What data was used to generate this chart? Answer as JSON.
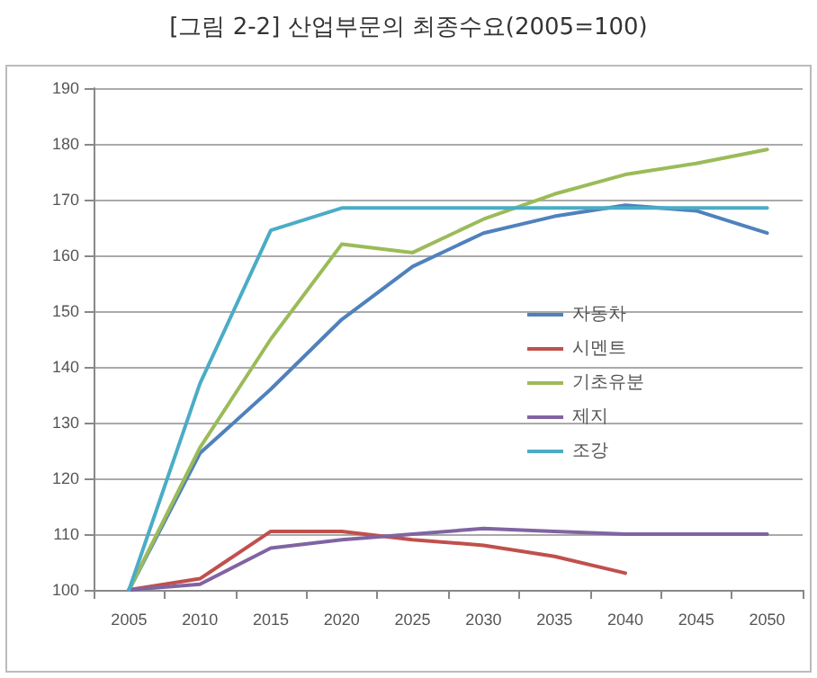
{
  "chart_data": {
    "type": "line",
    "title": "[그림 2-2] 산업부문의 최종수요(2005=100)",
    "categories": [
      "2005",
      "2010",
      "2015",
      "2020",
      "2025",
      "2030",
      "2035",
      "2040",
      "2045",
      "2050"
    ],
    "series": [
      {
        "name": "자동차",
        "color": "#4f81bd",
        "values": [
          100,
          124.5,
          136,
          148.5,
          158,
          164,
          167,
          169,
          168,
          164
        ]
      },
      {
        "name": "시멘트",
        "color": "#c0504d",
        "values": [
          100,
          102,
          110.5,
          110.5,
          109,
          108,
          106,
          103,
          null,
          null
        ]
      },
      {
        "name": "기초유분",
        "color": "#9bbb59",
        "values": [
          100,
          125.5,
          145,
          162,
          160.5,
          166.5,
          171,
          174.5,
          176.5,
          179
        ]
      },
      {
        "name": "제지",
        "color": "#8064a2",
        "values": [
          100,
          101,
          107.5,
          109,
          110,
          111,
          110.5,
          110,
          110,
          110
        ]
      },
      {
        "name": "조강",
        "color": "#4bacc6",
        "values": [
          100,
          137,
          164.5,
          168.5,
          168.5,
          168.5,
          168.5,
          168.5,
          168.5,
          168.5
        ]
      }
    ],
    "ylim": [
      100,
      190
    ],
    "yticks": [
      100,
      110,
      120,
      130,
      140,
      150,
      160,
      170,
      180,
      190
    ],
    "grid": "y",
    "legend": "right",
    "marker": "none",
    "line_style": "solid"
  }
}
